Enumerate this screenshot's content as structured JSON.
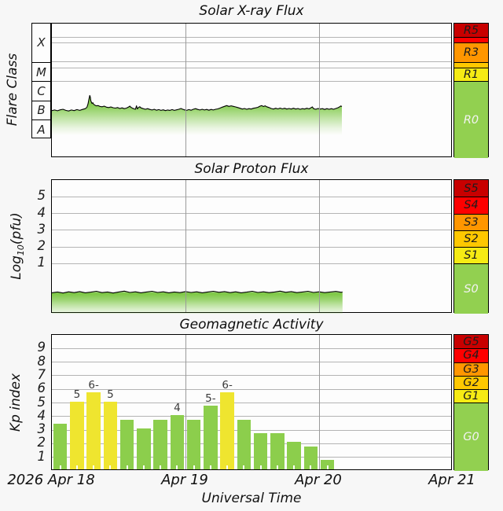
{
  "figure": {
    "bg": "#f7f7f7",
    "plot_bg": "#fdfdfd",
    "grid_color": "#b4b4b4",
    "xaxis": {
      "title": "Universal Time",
      "day_labels": [
        "2026 Apr 18",
        "Apr 19",
        "Apr 20",
        "Apr 21"
      ],
      "day_positions_hours": [
        0,
        24,
        48,
        72
      ]
    }
  },
  "xray_panel": {
    "title": "Solar X-ray Flux",
    "ylabel": "Flare Class",
    "class_boxes": [
      {
        "label": "X",
        "range": [
          -4,
          -2
        ]
      },
      {
        "label": "M",
        "range": [
          -5,
          -4
        ]
      },
      {
        "label": "C",
        "range": [
          -6,
          -5
        ]
      },
      {
        "label": "B",
        "range": [
          -7,
          -6
        ]
      },
      {
        "label": "A",
        "range": [
          -8,
          -7
        ]
      }
    ],
    "grid_values": [
      -2.7,
      -3,
      -4,
      -4.3,
      -5
    ],
    "scale": [
      {
        "label": "R5",
        "color": "#c80000",
        "range": [
          -2.7,
          -2.0
        ],
        "text_color": "#1c1c1c"
      },
      {
        "label": "",
        "color": "#fe0000",
        "range": [
          -3.0,
          -2.7
        ],
        "text_color": "#1c1c1c"
      },
      {
        "label": "R3",
        "color": "#ff9600",
        "range": [
          -4.0,
          -3.0
        ],
        "text_color": "#1c1c1c"
      },
      {
        "label": "",
        "color": "#ffc800",
        "range": [
          -4.3,
          -4.0
        ],
        "text_color": "#1c1c1c"
      },
      {
        "label": "R1",
        "color": "#f6eb14",
        "range": [
          -5.0,
          -4.3
        ],
        "text_color": "#1c1c1c"
      },
      {
        "label": "R0",
        "color": "#92d050",
        "range": [
          -9.0,
          -5.0
        ],
        "text_color": "#f2f2f2"
      }
    ]
  },
  "proton_panel": {
    "title": "Solar Proton Flux",
    "ylabel_pre": "Log",
    "ylabel_sub": "10",
    "ylabel_post": "(pfu)",
    "ticks": [
      {
        "label": "5",
        "value": 5
      },
      {
        "label": "4",
        "value": 4
      },
      {
        "label": "3",
        "value": 3
      },
      {
        "label": "2",
        "value": 2
      },
      {
        "label": "1",
        "value": 1
      }
    ],
    "grid_values": [
      5,
      4,
      3,
      2,
      1
    ],
    "scale": [
      {
        "label": "S5",
        "color": "#c80000",
        "range": [
          5,
          6
        ],
        "text_color": "#1c1c1c"
      },
      {
        "label": "S4",
        "color": "#fe0000",
        "range": [
          4,
          5
        ],
        "text_color": "#1c1c1c"
      },
      {
        "label": "S3",
        "color": "#ff9600",
        "range": [
          3,
          4
        ],
        "text_color": "#1c1c1c"
      },
      {
        "label": "S2",
        "color": "#ffc800",
        "range": [
          2,
          3
        ],
        "text_color": "#1c1c1c"
      },
      {
        "label": "S1",
        "color": "#f6eb14",
        "range": [
          1,
          2
        ],
        "text_color": "#1c1c1c"
      },
      {
        "label": "S0",
        "color": "#92d050",
        "range": [
          -2,
          1
        ],
        "text_color": "#f2f2f2"
      }
    ]
  },
  "kp_panel": {
    "title": "Geomagnetic Activity",
    "ylabel": "Kp index",
    "ticks": [
      {
        "label": "9",
        "value": 9
      },
      {
        "label": "8",
        "value": 8
      },
      {
        "label": "7",
        "value": 7
      },
      {
        "label": "6",
        "value": 6
      },
      {
        "label": "5",
        "value": 5
      },
      {
        "label": "4",
        "value": 4
      },
      {
        "label": "3",
        "value": 3
      },
      {
        "label": "2",
        "value": 2
      },
      {
        "label": "1",
        "value": 1
      }
    ],
    "grid_values": [
      1,
      2,
      3,
      4,
      5,
      6,
      7,
      8,
      9
    ],
    "scale": [
      {
        "label": "G5",
        "color": "#c80000",
        "range": [
          9,
          10
        ],
        "text_color": "#1c1c1c"
      },
      {
        "label": "G4",
        "color": "#fe0000",
        "range": [
          8,
          9
        ],
        "text_color": "#1c1c1c"
      },
      {
        "label": "G3",
        "color": "#ff9600",
        "range": [
          7,
          8
        ],
        "text_color": "#1c1c1c"
      },
      {
        "label": "G2",
        "color": "#ffc800",
        "range": [
          6,
          7
        ],
        "text_color": "#1c1c1c"
      },
      {
        "label": "G1",
        "color": "#f6eb14",
        "range": [
          5,
          6
        ],
        "text_color": "#1c1c1c"
      },
      {
        "label": "G0",
        "color": "#92d050",
        "range": [
          0,
          5
        ],
        "text_color": "#f2f2f2"
      }
    ]
  },
  "chart_data": [
    {
      "type": "area",
      "title": "Solar X-ray Flux",
      "ylabel": "Flare Class",
      "xlabel": "Universal Time",
      "x_unit": "hours from 2026 Apr 18 00:00 UT",
      "xlim": [
        0,
        72
      ],
      "y_scale": "log10 X-ray flux",
      "ylim": [
        -9,
        -2
      ],
      "line_color": "#000000",
      "fill_color": "#74c438",
      "points": [
        [
          0,
          -6.53
        ],
        [
          0.5,
          -6.5
        ],
        [
          1,
          -6.54
        ],
        [
          1.5,
          -6.49
        ],
        [
          2,
          -6.46
        ],
        [
          2.5,
          -6.52
        ],
        [
          3,
          -6.55
        ],
        [
          3.5,
          -6.5
        ],
        [
          4,
          -6.53
        ],
        [
          4.5,
          -6.48
        ],
        [
          5,
          -6.52
        ],
        [
          5.5,
          -6.47
        ],
        [
          6,
          -6.43
        ],
        [
          6.3,
          -6.36
        ],
        [
          6.5,
          -6.18
        ],
        [
          6.65,
          -5.95
        ],
        [
          6.8,
          -5.74
        ],
        [
          6.9,
          -5.82
        ],
        [
          7,
          -6.02
        ],
        [
          7.2,
          -6.16
        ],
        [
          7.35,
          -6.12
        ],
        [
          7.5,
          -6.2
        ],
        [
          7.8,
          -6.26
        ],
        [
          8,
          -6.28
        ],
        [
          8.3,
          -6.27
        ],
        [
          8.6,
          -6.31
        ],
        [
          9,
          -6.33
        ],
        [
          9.4,
          -6.3
        ],
        [
          9.8,
          -6.35
        ],
        [
          10.2,
          -6.37
        ],
        [
          10.6,
          -6.34
        ],
        [
          11,
          -6.38
        ],
        [
          11.4,
          -6.4
        ],
        [
          11.8,
          -6.37
        ],
        [
          12.2,
          -6.42
        ],
        [
          12.6,
          -6.39
        ],
        [
          13,
          -6.43
        ],
        [
          13.4,
          -6.4
        ],
        [
          13.8,
          -6.34
        ],
        [
          14,
          -6.3
        ],
        [
          14.2,
          -6.36
        ],
        [
          14.5,
          -6.41
        ],
        [
          14.8,
          -6.44
        ],
        [
          15,
          -6.46
        ],
        [
          15.2,
          -6.28
        ],
        [
          15.35,
          -6.44
        ],
        [
          15.6,
          -6.36
        ],
        [
          15.8,
          -6.33
        ],
        [
          16,
          -6.39
        ],
        [
          16.4,
          -6.43
        ],
        [
          16.8,
          -6.46
        ],
        [
          17.2,
          -6.43
        ],
        [
          17.6,
          -6.47
        ],
        [
          18,
          -6.5
        ],
        [
          18.4,
          -6.46
        ],
        [
          18.8,
          -6.51
        ],
        [
          19.2,
          -6.48
        ],
        [
          19.6,
          -6.52
        ],
        [
          20,
          -6.49
        ],
        [
          20.4,
          -6.53
        ],
        [
          20.8,
          -6.5
        ],
        [
          21.2,
          -6.52
        ],
        [
          21.6,
          -6.48
        ],
        [
          22,
          -6.52
        ],
        [
          22.4,
          -6.49
        ],
        [
          22.8,
          -6.46
        ],
        [
          23.2,
          -6.42
        ],
        [
          23.5,
          -6.46
        ],
        [
          23.8,
          -6.49
        ],
        [
          24.2,
          -6.52
        ],
        [
          24.6,
          -6.48
        ],
        [
          25,
          -6.51
        ],
        [
          25.4,
          -6.46
        ],
        [
          25.8,
          -6.43
        ],
        [
          26.2,
          -6.47
        ],
        [
          26.6,
          -6.5
        ],
        [
          27,
          -6.46
        ],
        [
          27.4,
          -6.5
        ],
        [
          27.8,
          -6.47
        ],
        [
          28.2,
          -6.51
        ],
        [
          28.6,
          -6.47
        ],
        [
          29,
          -6.5
        ],
        [
          29.4,
          -6.46
        ],
        [
          29.8,
          -6.44
        ],
        [
          30.2,
          -6.4
        ],
        [
          30.6,
          -6.35
        ],
        [
          31,
          -6.31
        ],
        [
          31.4,
          -6.27
        ],
        [
          31.8,
          -6.31
        ],
        [
          32.2,
          -6.28
        ],
        [
          32.6,
          -6.31
        ],
        [
          33,
          -6.34
        ],
        [
          33.4,
          -6.37
        ],
        [
          33.8,
          -6.41
        ],
        [
          34.2,
          -6.45
        ],
        [
          34.6,
          -6.42
        ],
        [
          35,
          -6.46
        ],
        [
          35.4,
          -6.43
        ],
        [
          35.8,
          -6.45
        ],
        [
          36.2,
          -6.41
        ],
        [
          36.6,
          -6.39
        ],
        [
          37,
          -6.36
        ],
        [
          37.4,
          -6.3
        ],
        [
          37.7,
          -6.27
        ],
        [
          38,
          -6.32
        ],
        [
          38.3,
          -6.28
        ],
        [
          38.6,
          -6.33
        ],
        [
          39,
          -6.37
        ],
        [
          39.4,
          -6.42
        ],
        [
          39.8,
          -6.45
        ],
        [
          40.2,
          -6.41
        ],
        [
          40.6,
          -6.44
        ],
        [
          41,
          -6.4
        ],
        [
          41.4,
          -6.44
        ],
        [
          41.8,
          -6.41
        ],
        [
          42.2,
          -6.45
        ],
        [
          42.6,
          -6.42
        ],
        [
          43,
          -6.45
        ],
        [
          43.4,
          -6.41
        ],
        [
          43.8,
          -6.45
        ],
        [
          44.2,
          -6.42
        ],
        [
          44.6,
          -6.46
        ],
        [
          45,
          -6.43
        ],
        [
          45.4,
          -6.45
        ],
        [
          45.8,
          -6.41
        ],
        [
          46.2,
          -6.44
        ],
        [
          46.5,
          -6.39
        ],
        [
          46.8,
          -6.34
        ],
        [
          47,
          -6.43
        ],
        [
          47.4,
          -6.46
        ],
        [
          47.8,
          -6.42
        ],
        [
          48.2,
          -6.45
        ],
        [
          48.6,
          -6.43
        ],
        [
          49,
          -6.47
        ],
        [
          49.4,
          -6.43
        ],
        [
          49.8,
          -6.46
        ],
        [
          50.2,
          -6.43
        ],
        [
          50.6,
          -6.46
        ],
        [
          51,
          -6.42
        ],
        [
          51.4,
          -6.38
        ],
        [
          51.7,
          -6.33
        ],
        [
          51.9,
          -6.29
        ],
        [
          52.1,
          -6.32
        ]
      ]
    },
    {
      "type": "area",
      "title": "Solar Proton Flux",
      "ylabel": "Log10(pfu)",
      "xlabel": "Universal Time",
      "x_unit": "hours from 2026 Apr 18 00:00 UT",
      "xlim": [
        0,
        72
      ],
      "ylim": [
        -2,
        6
      ],
      "line_color": "#000000",
      "fill_color": "#74c438",
      "points": [
        [
          0,
          -0.75
        ],
        [
          1,
          -0.7
        ],
        [
          2,
          -0.76
        ],
        [
          3,
          -0.69
        ],
        [
          4,
          -0.74
        ],
        [
          5,
          -0.68
        ],
        [
          6,
          -0.75
        ],
        [
          7,
          -0.71
        ],
        [
          8,
          -0.66
        ],
        [
          9,
          -0.74
        ],
        [
          10,
          -0.7
        ],
        [
          11,
          -0.76
        ],
        [
          12,
          -0.7
        ],
        [
          13,
          -0.65
        ],
        [
          14,
          -0.73
        ],
        [
          15,
          -0.69
        ],
        [
          16,
          -0.75
        ],
        [
          17,
          -0.7
        ],
        [
          18,
          -0.66
        ],
        [
          19,
          -0.73
        ],
        [
          20,
          -0.69
        ],
        [
          21,
          -0.75
        ],
        [
          22,
          -0.7
        ],
        [
          23,
          -0.74
        ],
        [
          24,
          -0.68
        ],
        [
          25,
          -0.73
        ],
        [
          26,
          -0.69
        ],
        [
          27,
          -0.75
        ],
        [
          28,
          -0.7
        ],
        [
          29,
          -0.66
        ],
        [
          30,
          -0.72
        ],
        [
          31,
          -0.68
        ],
        [
          32,
          -0.74
        ],
        [
          33,
          -0.69
        ],
        [
          34,
          -0.75
        ],
        [
          35,
          -0.71
        ],
        [
          36,
          -0.66
        ],
        [
          37,
          -0.73
        ],
        [
          38,
          -0.69
        ],
        [
          39,
          -0.74
        ],
        [
          40,
          -0.7
        ],
        [
          41,
          -0.65
        ],
        [
          42,
          -0.72
        ],
        [
          43,
          -0.68
        ],
        [
          44,
          -0.74
        ],
        [
          45,
          -0.7
        ],
        [
          46,
          -0.66
        ],
        [
          47,
          -0.73
        ],
        [
          48,
          -0.69
        ],
        [
          49,
          -0.74
        ],
        [
          50,
          -0.7
        ],
        [
          51,
          -0.67
        ],
        [
          52,
          -0.72
        ],
        [
          52.2,
          -0.7
        ]
      ]
    },
    {
      "type": "bar",
      "title": "Geomagnetic Activity",
      "ylabel": "Kp index",
      "xlabel": "Universal Time",
      "xlim": [
        0,
        72
      ],
      "ylim": [
        0,
        10
      ],
      "bar_duration_hours": 3,
      "start_hour": 0,
      "color_green": "#8cce4c",
      "color_yellow": "#efe52f",
      "yellow_threshold": 5,
      "bars": [
        {
          "kp": 3.33,
          "label": ""
        },
        {
          "kp": 5.0,
          "label": "5"
        },
        {
          "kp": 5.67,
          "label": "6-"
        },
        {
          "kp": 5.0,
          "label": "5"
        },
        {
          "kp": 3.67,
          "label": ""
        },
        {
          "kp": 3.0,
          "label": ""
        },
        {
          "kp": 3.67,
          "label": ""
        },
        {
          "kp": 4.0,
          "label": "4"
        },
        {
          "kp": 3.67,
          "label": ""
        },
        {
          "kp": 4.67,
          "label": "5-"
        },
        {
          "kp": 5.67,
          "label": "6-"
        },
        {
          "kp": 3.67,
          "label": ""
        },
        {
          "kp": 2.67,
          "label": ""
        },
        {
          "kp": 2.67,
          "label": ""
        },
        {
          "kp": 2.0,
          "label": ""
        },
        {
          "kp": 1.67,
          "label": ""
        },
        {
          "kp": 0.67,
          "label": ""
        }
      ]
    }
  ]
}
